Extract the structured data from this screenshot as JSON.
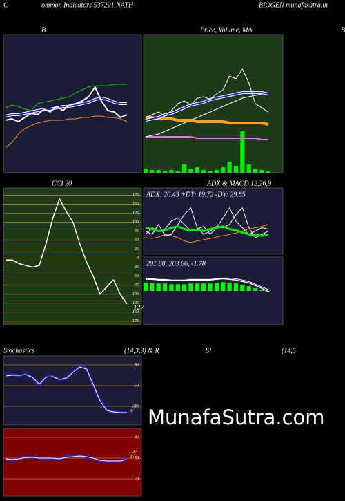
{
  "header": {
    "left": "C",
    "center": "ommon  Indicators 537291 NATH",
    "right": "BIOGEN  munafasutra.in",
    "edge": "B",
    "row3": [
      "Stochastics",
      "(14,3,3) & R",
      "SI",
      "(14,5"
    ],
    "watermark": "MunafaSutra.com"
  },
  "chart_data": [
    {
      "type": "line",
      "title": "B",
      "background": "#1c1c38",
      "ylim": [
        0,
        100
      ],
      "series": [
        {
          "color": "#ff8c1a",
          "width": 1,
          "values": [
            18,
            22,
            28,
            32,
            34,
            36,
            37,
            38,
            38,
            38,
            39,
            39,
            40,
            40,
            41,
            41,
            40,
            40,
            39,
            37
          ]
        },
        {
          "color": "#00cc00",
          "width": 1,
          "values": [
            47,
            49,
            48,
            46,
            45,
            50,
            51,
            52,
            53,
            54,
            55,
            58,
            60,
            62,
            63,
            63,
            63,
            64,
            64,
            64
          ]
        },
        {
          "color": "#ffffff",
          "width": 4,
          "values": [
            41,
            42,
            42,
            43,
            44,
            45,
            46,
            46,
            47,
            48,
            48,
            49,
            50,
            51,
            53,
            54,
            53,
            51,
            50,
            50
          ]
        },
        {
          "color": "#2222ff",
          "width": 2,
          "values": [
            41,
            42,
            42,
            43,
            44,
            45,
            46,
            46,
            47,
            48,
            48,
            49,
            50,
            51,
            53,
            54,
            53,
            51,
            50,
            50
          ]
        },
        {
          "color": "#ffffff",
          "width": 2,
          "values": [
            38,
            39,
            37,
            40,
            43,
            42,
            46,
            44,
            48,
            45,
            49,
            50,
            52,
            55,
            62,
            52,
            45,
            44,
            40,
            42
          ]
        }
      ]
    },
    {
      "type": "line",
      "title": "Price,  Volume,  MA",
      "background": "#1e3a1a",
      "ylim": [
        0,
        100
      ],
      "series": [
        {
          "color": "#00ee00",
          "kind": "bar",
          "values": [
            3,
            2,
            2,
            1,
            2,
            1,
            6,
            3,
            4,
            2,
            1,
            2,
            4,
            8,
            5,
            30,
            6,
            3,
            2,
            1
          ]
        },
        {
          "color": "#ff66ff",
          "width": 2,
          "values": [
            26,
            26,
            26,
            26,
            26,
            26,
            26,
            26,
            25,
            25,
            25,
            25,
            25,
            25,
            25,
            25,
            25,
            25,
            24,
            24
          ]
        },
        {
          "color": "#ffffff",
          "width": 1,
          "values": [
            26,
            27,
            28,
            30,
            32,
            34,
            36,
            38,
            40,
            42,
            44,
            46,
            48,
            50,
            52,
            54,
            55,
            56,
            57,
            57
          ]
        },
        {
          "color": "#ffa020",
          "width": 4,
          "values": [
            40,
            40,
            39,
            39,
            39,
            38,
            38,
            38,
            37,
            37,
            37,
            37,
            37,
            36,
            36,
            36,
            36,
            36,
            36,
            35
          ]
        },
        {
          "color": "#ffffff",
          "width": 4,
          "values": [
            38,
            39,
            40,
            42,
            43,
            45,
            47,
            49,
            50,
            51,
            53,
            54,
            55,
            56,
            57,
            58,
            58,
            58,
            58,
            57
          ]
        },
        {
          "color": "#2222ff",
          "width": 2,
          "values": [
            38,
            39,
            40,
            42,
            43,
            45,
            47,
            49,
            50,
            51,
            53,
            54,
            55,
            56,
            57,
            58,
            58,
            58,
            58,
            57
          ]
        },
        {
          "color": "#ffffff",
          "width": 1,
          "values": [
            40,
            42,
            44,
            41,
            45,
            50,
            52,
            49,
            54,
            55,
            53,
            57,
            60,
            70,
            68,
            75,
            65,
            50,
            47,
            44
          ]
        }
      ]
    },
    {
      "type": "line",
      "title": "CCI 20",
      "background": "#1e3a1a",
      "ylim": [
        -185,
        195
      ],
      "grid": true,
      "grid_color": "#b8860b",
      "yticks": [
        175,
        150,
        125,
        100,
        75,
        50,
        25,
        0,
        -25,
        -50,
        -75,
        -100,
        -125,
        -150,
        -175
      ],
      "last_label": true,
      "series": [
        {
          "color": "#ffffff",
          "width": 1.5,
          "values": [
            -5,
            -5,
            -15,
            -20,
            -25,
            -20,
            40,
            110,
            165,
            130,
            100,
            40,
            -10,
            -50,
            -100,
            -80,
            -60,
            -100,
            -127
          ]
        }
      ]
    },
    {
      "type": "line",
      "title": "ADX  & MACD 12,26,9",
      "subtitle": "ADX: 20.43  +DY: 19.72  -DY: 29.85",
      "background": "#1c1c38",
      "ylim": [
        0,
        100
      ],
      "series": [
        {
          "color": "#ff8c1a",
          "width": 1,
          "values": [
            25,
            24,
            26,
            30,
            28,
            25,
            20,
            18,
            20,
            22,
            24,
            26,
            28,
            30,
            32,
            35,
            38,
            40,
            42,
            45
          ]
        },
        {
          "color": "#ffffff",
          "width": 1,
          "values": [
            35,
            30,
            45,
            28,
            30,
            45,
            60,
            70,
            40,
            30,
            35,
            42,
            40,
            45,
            60,
            70,
            40,
            25,
            30,
            35
          ]
        },
        {
          "color": "#ffffff",
          "width": 1,
          "values": [
            30,
            40,
            35,
            38,
            50,
            55,
            45,
            35,
            38,
            42,
            30,
            40,
            55,
            70,
            50,
            40,
            30,
            35,
            40,
            38
          ]
        },
        {
          "color": "#00ee00",
          "width": 3,
          "values": [
            40,
            38,
            35,
            36,
            40,
            42,
            38,
            36,
            37,
            35,
            38,
            40,
            42,
            38,
            36,
            33,
            30,
            29,
            28,
            30
          ]
        }
      ]
    },
    {
      "type": "line",
      "subtitle": "201.88,  203.66,  -1.78",
      "background": "#1c1c38",
      "ylim": [
        -50,
        50
      ],
      "series": [
        {
          "color": "#00ff00",
          "kind": "bar",
          "values": [
            12,
            12,
            11,
            11,
            10,
            10,
            10,
            11,
            11,
            11,
            11,
            12,
            13,
            12,
            11,
            9,
            7,
            4,
            1,
            -2
          ]
        },
        {
          "color": "#ffffff",
          "width": 1,
          "values": [
            18,
            18,
            17,
            17,
            16,
            16,
            16,
            17,
            17,
            17,
            17,
            18,
            19,
            19,
            18,
            16,
            14,
            10,
            6,
            2
          ]
        },
        {
          "color": "#ffffff",
          "width": 1.5,
          "values": [
            17,
            17,
            16,
            16,
            15,
            15,
            15,
            16,
            16,
            16,
            16,
            17,
            18,
            17,
            16,
            14,
            12,
            8,
            4,
            -1
          ]
        }
      ]
    },
    {
      "type": "line",
      "background": "#1c1c38",
      "ylim": [
        -7,
        93
      ],
      "grid": true,
      "grid_color": "#b8860b",
      "yticks": [
        80,
        50,
        20
      ],
      "last_label": true,
      "series": [
        {
          "color": "#2222ff",
          "width": 3,
          "values": [
            65,
            66,
            64,
            67,
            62,
            50,
            63,
            64,
            58,
            60,
            70,
            78,
            75,
            50,
            30,
            15,
            12,
            11,
            11.09
          ]
        },
        {
          "color": "#ffffff",
          "width": 1,
          "values": [
            64,
            65,
            65,
            66,
            62,
            52,
            62,
            63,
            59,
            61,
            69,
            77,
            74,
            52,
            28,
            14,
            12,
            11,
            11
          ]
        }
      ]
    },
    {
      "type": "line",
      "background": "#800000",
      "ylim": [
        -5,
        93
      ],
      "grid": true,
      "grid_color": "#b8860b",
      "yticks": [
        80,
        50,
        20
      ],
      "last_label": true,
      "series": [
        {
          "color": "#2222ff",
          "width": 3,
          "values": [
            48,
            47,
            49,
            52,
            51,
            50,
            49,
            50,
            48,
            52,
            53,
            54,
            51,
            50,
            46,
            45,
            46,
            45,
            49.36
          ]
        },
        {
          "color": "#ffffff",
          "width": 1,
          "values": [
            49,
            48,
            49,
            51,
            51,
            50,
            50,
            50,
            49,
            51,
            52,
            53,
            52,
            50,
            47,
            46,
            46,
            46,
            48
          ]
        }
      ]
    }
  ]
}
